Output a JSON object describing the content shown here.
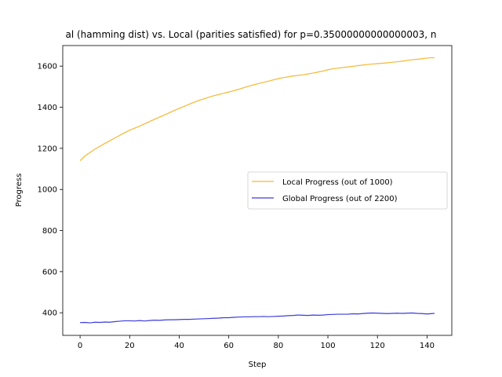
{
  "chart_data": {
    "type": "line",
    "title": "al (hamming dist) vs. Local (parities satisfied) for p=0.35000000000000003, n",
    "xlabel": "Step",
    "ylabel": "Progress",
    "xlim": [
      -7,
      150
    ],
    "ylim": [
      290,
      1700
    ],
    "xticks": [
      0,
      20,
      40,
      60,
      80,
      100,
      120,
      140
    ],
    "yticks": [
      400,
      600,
      800,
      1000,
      1200,
      1400,
      1600
    ],
    "grid": false,
    "legend_position": "center-right",
    "series": [
      {
        "name": "Local Progress (out of 1000)",
        "color": "#f5b731",
        "x": [
          0,
          2,
          4,
          6,
          8,
          10,
          12,
          14,
          16,
          18,
          20,
          22,
          24,
          26,
          28,
          30,
          32,
          34,
          36,
          38,
          40,
          42,
          44,
          46,
          48,
          50,
          52,
          54,
          56,
          58,
          60,
          62,
          64,
          66,
          68,
          70,
          72,
          74,
          76,
          78,
          80,
          82,
          84,
          86,
          88,
          90,
          92,
          94,
          96,
          98,
          100,
          102,
          104,
          106,
          108,
          110,
          112,
          114,
          116,
          118,
          120,
          122,
          124,
          126,
          128,
          130,
          132,
          134,
          136,
          138,
          140,
          142,
          143
        ],
        "values": [
          1140,
          1163,
          1180,
          1196,
          1210,
          1224,
          1237,
          1250,
          1263,
          1276,
          1288,
          1298,
          1308,
          1319,
          1330,
          1341,
          1352,
          1362,
          1373,
          1384,
          1394,
          1404,
          1414,
          1424,
          1433,
          1441,
          1449,
          1456,
          1462,
          1468,
          1474,
          1480,
          1487,
          1495,
          1502,
          1509,
          1515,
          1521,
          1527,
          1533,
          1539,
          1544,
          1548,
          1552,
          1555,
          1558,
          1562,
          1566,
          1571,
          1576,
          1582,
          1587,
          1590,
          1593,
          1596,
          1599,
          1602,
          1605,
          1608,
          1610,
          1612,
          1614,
          1616,
          1619,
          1621,
          1624,
          1628,
          1631,
          1633,
          1636,
          1639,
          1641,
          1640
        ]
      },
      {
        "name": "Global Progress (out of 2200)",
        "color": "#3c3ce0",
        "x": [
          0,
          2,
          4,
          6,
          8,
          10,
          12,
          14,
          16,
          18,
          20,
          22,
          24,
          26,
          28,
          30,
          32,
          34,
          36,
          38,
          40,
          42,
          44,
          46,
          48,
          50,
          52,
          54,
          56,
          58,
          60,
          62,
          64,
          66,
          68,
          70,
          72,
          74,
          76,
          78,
          80,
          82,
          84,
          86,
          88,
          90,
          92,
          94,
          96,
          98,
          100,
          102,
          104,
          106,
          108,
          110,
          112,
          114,
          116,
          118,
          120,
          122,
          124,
          126,
          128,
          130,
          132,
          134,
          136,
          138,
          140,
          142,
          143
        ],
        "values": [
          352,
          353,
          351,
          354,
          353,
          355,
          354,
          357,
          359,
          361,
          361,
          360,
          362,
          360,
          362,
          364,
          363,
          365,
          366,
          366,
          367,
          368,
          368,
          369,
          370,
          371,
          372,
          373,
          374,
          376,
          376,
          378,
          379,
          380,
          380,
          381,
          381,
          382,
          381,
          382,
          383,
          384,
          386,
          387,
          389,
          388,
          387,
          389,
          388,
          389,
          391,
          392,
          393,
          393,
          393,
          395,
          394,
          396,
          398,
          399,
          398,
          397,
          396,
          397,
          398,
          397,
          398,
          399,
          397,
          396,
          394,
          396,
          397
        ]
      }
    ]
  }
}
